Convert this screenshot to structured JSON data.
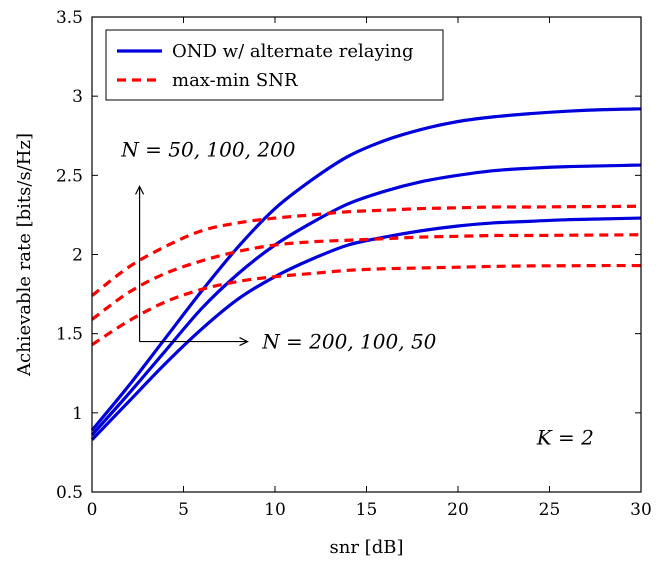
{
  "chart_data": {
    "type": "line",
    "xlabel": "snr [dB]",
    "ylabel": "Achievable rate [bits/s/Hz]",
    "xlim": [
      0,
      30
    ],
    "ylim": [
      0.5,
      3.5
    ],
    "xticks": [
      "0",
      "5",
      "10",
      "15",
      "20",
      "25",
      "30"
    ],
    "yticks": [
      "0.5",
      "1",
      "1.5",
      "2",
      "2.5",
      "3",
      "3.5"
    ],
    "grid": false,
    "legend_placement": "top-left",
    "x": [
      0,
      2,
      4,
      6,
      8,
      10,
      12,
      14,
      16,
      18,
      20,
      22,
      24,
      26,
      28,
      30
    ],
    "series": [
      {
        "name": "OND w/ alternate relaying",
        "group": "blue",
        "color": "#0000dd",
        "style": "solid",
        "values": [
          0.89,
          1.17,
          1.47,
          1.77,
          2.05,
          2.29,
          2.47,
          2.62,
          2.72,
          2.79,
          2.84,
          2.87,
          2.89,
          2.905,
          2.915,
          2.92
        ]
      },
      {
        "name": "",
        "group": "blue",
        "color": "#0000dd",
        "style": "solid",
        "values": [
          0.86,
          1.12,
          1.39,
          1.66,
          1.88,
          2.06,
          2.2,
          2.32,
          2.4,
          2.46,
          2.5,
          2.53,
          2.545,
          2.555,
          2.56,
          2.565
        ]
      },
      {
        "name": "",
        "group": "blue",
        "color": "#0000dd",
        "style": "solid",
        "values": [
          0.83,
          1.07,
          1.31,
          1.53,
          1.72,
          1.86,
          1.97,
          2.06,
          2.11,
          2.15,
          2.18,
          2.2,
          2.21,
          2.22,
          2.225,
          2.23
        ]
      },
      {
        "name": "max-min SNR",
        "group": "red",
        "color": "#ff0000",
        "style": "dashed",
        "values": [
          1.74,
          1.92,
          2.05,
          2.15,
          2.2,
          2.23,
          2.25,
          2.27,
          2.28,
          2.29,
          2.295,
          2.3,
          2.3,
          2.302,
          2.303,
          2.305
        ]
      },
      {
        "name": "",
        "group": "red",
        "color": "#ff0000",
        "style": "dashed",
        "values": [
          1.59,
          1.76,
          1.88,
          1.96,
          2.02,
          2.06,
          2.08,
          2.09,
          2.1,
          2.11,
          2.115,
          2.12,
          2.12,
          2.122,
          2.123,
          2.125
        ]
      },
      {
        "name": "",
        "group": "red",
        "color": "#ff0000",
        "style": "dashed",
        "values": [
          1.43,
          1.58,
          1.7,
          1.78,
          1.83,
          1.86,
          1.88,
          1.9,
          1.91,
          1.915,
          1.92,
          1.925,
          1.928,
          1.929,
          1.93,
          1.93
        ]
      }
    ],
    "annotations": [
      {
        "text": "N = 50, 100, 200",
        "direction": "up"
      },
      {
        "text": "N = 200, 100, 50",
        "direction": "right"
      },
      {
        "text": "K = 2"
      }
    ]
  }
}
